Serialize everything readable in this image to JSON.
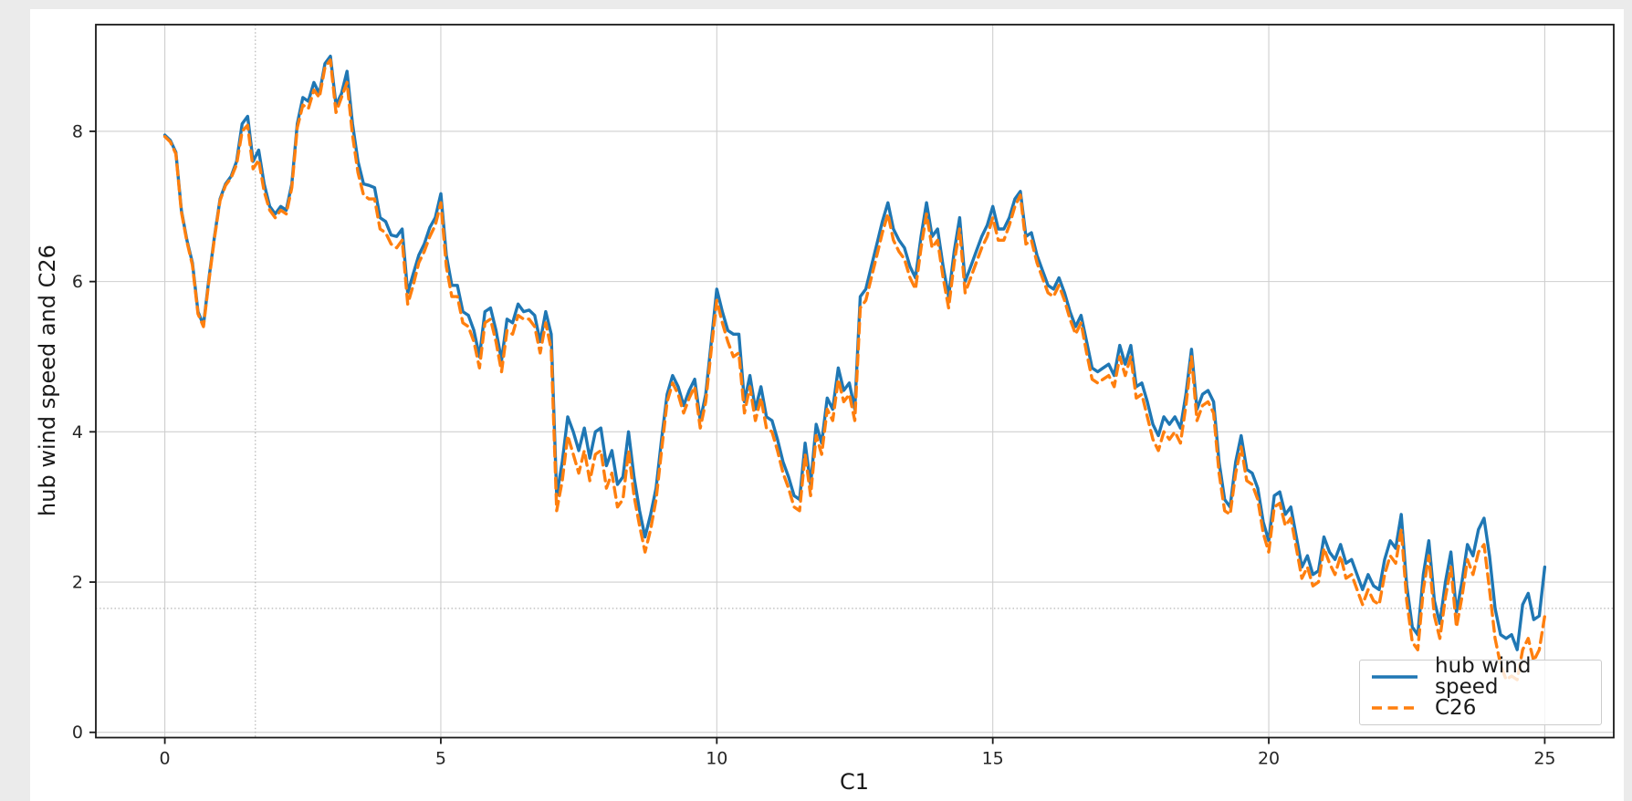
{
  "figure": {
    "outer_background": "#ebebeb",
    "plot_background": "#ffffff",
    "grid_color": "#cfcfcf",
    "ref_line_color": "#b5b5b5",
    "spine_color": "#1a1a1a",
    "text_color": "#262626",
    "accent_blue": "#1f77b4",
    "accent_orange": "#ff7f0e"
  },
  "chart_data": {
    "type": "line",
    "title": "",
    "xlabel": "C1",
    "ylabel": "hub wind speed and C26",
    "xlim": [
      -1.25,
      26.25
    ],
    "ylim": [
      -0.07,
      9.42
    ],
    "x_ticks": [
      0,
      5,
      10,
      15,
      20,
      25
    ],
    "y_ticks": [
      0,
      2,
      4,
      6,
      8
    ],
    "grid": true,
    "legend_position": "lower right",
    "ref_lines": {
      "vline_x": 1.64,
      "hline_y": 1.65,
      "style": "dotted"
    },
    "x_start": 0,
    "x_step": 0.1,
    "series": [
      {
        "name": "hub wind speed",
        "color": "#1f77b4",
        "style": "solid",
        "values": [
          7.95,
          7.88,
          7.72,
          6.95,
          6.55,
          6.25,
          5.6,
          5.42,
          6.05,
          6.6,
          7.1,
          7.3,
          7.4,
          7.6,
          8.1,
          8.2,
          7.6,
          7.75,
          7.3,
          7.0,
          6.9,
          7.0,
          6.95,
          7.3,
          8.1,
          8.45,
          8.4,
          8.65,
          8.5,
          8.9,
          9.0,
          8.35,
          8.5,
          8.8,
          8.1,
          7.6,
          7.3,
          7.28,
          7.25,
          6.85,
          6.8,
          6.62,
          6.6,
          6.7,
          5.85,
          6.1,
          6.35,
          6.5,
          6.72,
          6.85,
          7.17,
          6.35,
          5.95,
          5.95,
          5.6,
          5.55,
          5.35,
          5.0,
          5.6,
          5.65,
          5.35,
          4.95,
          5.5,
          5.45,
          5.7,
          5.6,
          5.62,
          5.55,
          5.2,
          5.6,
          5.3,
          3.15,
          3.6,
          4.2,
          4.0,
          3.75,
          4.05,
          3.65,
          4.0,
          4.05,
          3.55,
          3.75,
          3.3,
          3.4,
          4.0,
          3.4,
          2.95,
          2.6,
          2.9,
          3.25,
          3.9,
          4.5,
          4.75,
          4.6,
          4.35,
          4.55,
          4.7,
          4.15,
          4.5,
          5.2,
          5.9,
          5.6,
          5.35,
          5.3,
          5.3,
          4.4,
          4.75,
          4.3,
          4.6,
          4.2,
          4.15,
          3.9,
          3.6,
          3.4,
          3.15,
          3.1,
          3.85,
          3.3,
          4.1,
          3.85,
          4.45,
          4.3,
          4.85,
          4.55,
          4.65,
          4.3,
          5.8,
          5.9,
          6.2,
          6.5,
          6.8,
          7.05,
          6.7,
          6.55,
          6.45,
          6.2,
          6.05,
          6.6,
          7.05,
          6.6,
          6.7,
          6.2,
          5.8,
          6.4,
          6.85,
          6.0,
          6.2,
          6.4,
          6.6,
          6.75,
          7.0,
          6.7,
          6.7,
          6.85,
          7.1,
          7.2,
          6.6,
          6.65,
          6.35,
          6.15,
          5.95,
          5.9,
          6.05,
          5.85,
          5.6,
          5.4,
          5.55,
          5.2,
          4.85,
          4.8,
          4.85,
          4.9,
          4.75,
          5.15,
          4.9,
          5.15,
          4.6,
          4.65,
          4.4,
          4.1,
          3.95,
          4.2,
          4.1,
          4.2,
          4.05,
          4.5,
          5.1,
          4.3,
          4.5,
          4.55,
          4.4,
          3.6,
          3.1,
          3.0,
          3.6,
          3.95,
          3.5,
          3.45,
          3.25,
          2.8,
          2.55,
          3.15,
          3.2,
          2.9,
          3.0,
          2.6,
          2.2,
          2.35,
          2.1,
          2.15,
          2.6,
          2.4,
          2.3,
          2.5,
          2.25,
          2.3,
          2.1,
          1.9,
          2.1,
          1.95,
          1.9,
          2.3,
          2.55,
          2.45,
          2.9,
          1.95,
          1.4,
          1.3,
          2.1,
          2.55,
          1.75,
          1.45,
          2.0,
          2.4,
          1.6,
          2.0,
          2.5,
          2.35,
          2.7,
          2.85,
          2.35,
          1.65,
          1.3,
          1.25,
          1.3,
          1.1,
          1.7,
          1.85,
          1.5,
          1.55,
          2.2
        ]
      },
      {
        "name": "C26",
        "color": "#ff7f0e",
        "style": "dashed",
        "values": [
          7.93,
          7.86,
          7.7,
          6.93,
          6.53,
          6.22,
          5.57,
          5.4,
          6.02,
          6.58,
          7.08,
          7.28,
          7.38,
          7.56,
          8.0,
          8.08,
          7.5,
          7.62,
          7.2,
          6.95,
          6.85,
          6.95,
          6.9,
          7.25,
          8.05,
          8.35,
          8.3,
          8.55,
          8.45,
          8.85,
          8.95,
          8.25,
          8.45,
          8.65,
          7.95,
          7.45,
          7.15,
          7.1,
          7.1,
          6.7,
          6.65,
          6.5,
          6.45,
          6.55,
          5.7,
          5.95,
          6.25,
          6.4,
          6.6,
          6.75,
          7.05,
          6.2,
          5.8,
          5.8,
          5.45,
          5.4,
          5.2,
          4.85,
          5.45,
          5.5,
          5.2,
          4.8,
          5.35,
          5.3,
          5.55,
          5.5,
          5.5,
          5.4,
          5.05,
          5.45,
          5.1,
          2.95,
          3.35,
          3.95,
          3.7,
          3.45,
          3.75,
          3.35,
          3.7,
          3.75,
          3.25,
          3.45,
          3.0,
          3.1,
          3.75,
          3.15,
          2.75,
          2.4,
          2.7,
          3.1,
          3.75,
          4.4,
          4.65,
          4.5,
          4.25,
          4.45,
          4.6,
          4.05,
          4.4,
          5.1,
          5.75,
          5.45,
          5.2,
          5.0,
          5.05,
          4.25,
          4.6,
          4.15,
          4.45,
          4.05,
          4.0,
          3.75,
          3.45,
          3.25,
          3.0,
          2.95,
          3.7,
          3.15,
          3.95,
          3.7,
          4.3,
          4.15,
          4.7,
          4.4,
          4.5,
          4.15,
          5.65,
          5.75,
          6.05,
          6.35,
          6.65,
          6.9,
          6.55,
          6.4,
          6.3,
          6.05,
          5.9,
          6.45,
          6.9,
          6.45,
          6.55,
          6.05,
          5.65,
          6.25,
          6.7,
          5.85,
          6.05,
          6.25,
          6.45,
          6.6,
          6.85,
          6.55,
          6.55,
          6.75,
          7.0,
          7.15,
          6.5,
          6.55,
          6.25,
          6.05,
          5.85,
          5.8,
          5.95,
          5.75,
          5.5,
          5.3,
          5.45,
          5.05,
          4.7,
          4.65,
          4.7,
          4.75,
          4.6,
          5.0,
          4.75,
          5.0,
          4.45,
          4.5,
          4.2,
          3.9,
          3.75,
          4.0,
          3.9,
          4.0,
          3.85,
          4.35,
          5.0,
          4.15,
          4.35,
          4.4,
          4.25,
          3.45,
          2.95,
          2.9,
          3.45,
          3.8,
          3.35,
          3.3,
          3.1,
          2.65,
          2.4,
          3.0,
          3.05,
          2.75,
          2.85,
          2.45,
          2.05,
          2.2,
          1.95,
          2.0,
          2.45,
          2.25,
          2.1,
          2.35,
          2.05,
          2.1,
          1.9,
          1.7,
          1.9,
          1.75,
          1.7,
          2.1,
          2.35,
          2.25,
          2.7,
          1.75,
          1.2,
          1.1,
          1.9,
          2.35,
          1.55,
          1.25,
          1.8,
          2.2,
          1.4,
          1.8,
          2.3,
          2.1,
          2.4,
          2.5,
          1.9,
          1.25,
          0.9,
          0.7,
          0.75,
          0.7,
          1.1,
          1.25,
          0.95,
          1.1,
          1.55
        ]
      }
    ]
  }
}
